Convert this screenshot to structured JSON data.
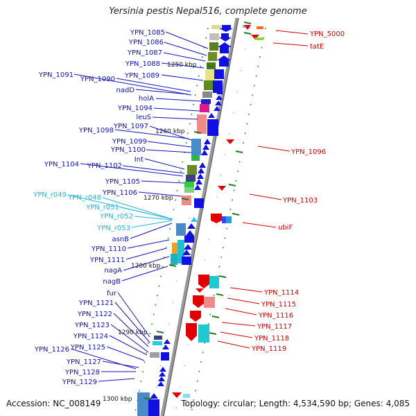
{
  "title": "Yersinia pestis Nepal516, complete genome",
  "footer": {
    "accession": "Accession: NC_008149",
    "topology": "Topology: circular; Length: 4,534,590 bp; Genes: 4,085"
  },
  "colors": {
    "forward_label": "#1010c0",
    "reverse_label": "#d00000",
    "rna_label": "#20b8d8",
    "backbone": "#8a8a8a",
    "tick": "#1f7a1f"
  },
  "position_markers": [
    "1250 kbp",
    "1260 kbp",
    "1270 kbp",
    "1280 kbp",
    "1290 kbp",
    "1300 kbp"
  ],
  "left_labels": [
    {
      "text": "YPN_1085",
      "kind": "gene"
    },
    {
      "text": "YPN_1086",
      "kind": "gene"
    },
    {
      "text": "YPN_1087",
      "kind": "gene"
    },
    {
      "text": "YPN_1088",
      "kind": "gene"
    },
    {
      "text": "YPN_1091",
      "kind": "gene"
    },
    {
      "text": "YPN_1089",
      "kind": "gene"
    },
    {
      "text": "YPN_1090",
      "kind": "gene"
    },
    {
      "text": "nadD",
      "kind": "gene"
    },
    {
      "text": "holA",
      "kind": "gene"
    },
    {
      "text": "YPN_1094",
      "kind": "gene"
    },
    {
      "text": "leuS",
      "kind": "gene"
    },
    {
      "text": "YPN_1097",
      "kind": "gene"
    },
    {
      "text": "YPN_1098",
      "kind": "gene"
    },
    {
      "text": "YPN_1099",
      "kind": "gene"
    },
    {
      "text": "YPN_1100",
      "kind": "gene"
    },
    {
      "text": "Int",
      "kind": "gene"
    },
    {
      "text": "YPN_1104",
      "kind": "gene"
    },
    {
      "text": "YPN_1102",
      "kind": "gene"
    },
    {
      "text": "YPN_1105",
      "kind": "gene"
    },
    {
      "text": "YPN_1106",
      "kind": "gene"
    },
    {
      "text": "YPN_r049",
      "kind": "rna"
    },
    {
      "text": "YPN_r048",
      "kind": "rna"
    },
    {
      "text": "YPN_r051",
      "kind": "rna"
    },
    {
      "text": "YPN_r052",
      "kind": "rna"
    },
    {
      "text": "YPN_r053",
      "kind": "rna"
    },
    {
      "text": "asnB",
      "kind": "gene"
    },
    {
      "text": "YPN_1110",
      "kind": "gene"
    },
    {
      "text": "YPN_1111",
      "kind": "gene"
    },
    {
      "text": "nagA",
      "kind": "gene"
    },
    {
      "text": "nagB",
      "kind": "gene"
    },
    {
      "text": "fur",
      "kind": "gene"
    },
    {
      "text": "YPN_1121",
      "kind": "gene"
    },
    {
      "text": "YPN_1122",
      "kind": "gene"
    },
    {
      "text": "YPN_1123",
      "kind": "gene"
    },
    {
      "text": "YPN_1124",
      "kind": "gene"
    },
    {
      "text": "YPN_1126",
      "kind": "gene"
    },
    {
      "text": "YPN_1125",
      "kind": "gene"
    },
    {
      "text": "YPN_1127",
      "kind": "gene"
    },
    {
      "text": "YPN_1128",
      "kind": "gene"
    },
    {
      "text": "YPN_1129",
      "kind": "gene"
    }
  ],
  "right_labels": [
    {
      "text": "YPN_5000",
      "kind": "gene"
    },
    {
      "text": "tatE",
      "kind": "gene"
    },
    {
      "text": "YPN_1096",
      "kind": "gene"
    },
    {
      "text": "YPN_1103",
      "kind": "gene"
    },
    {
      "text": "ubiF",
      "kind": "gene"
    },
    {
      "text": "YPN_1114",
      "kind": "gene"
    },
    {
      "text": "YPN_1115",
      "kind": "gene"
    },
    {
      "text": "YPN_1116",
      "kind": "gene"
    },
    {
      "text": "YPN_1117",
      "kind": "gene"
    },
    {
      "text": "YPN_1118",
      "kind": "gene"
    },
    {
      "text": "YPN_1119",
      "kind": "gene"
    }
  ]
}
